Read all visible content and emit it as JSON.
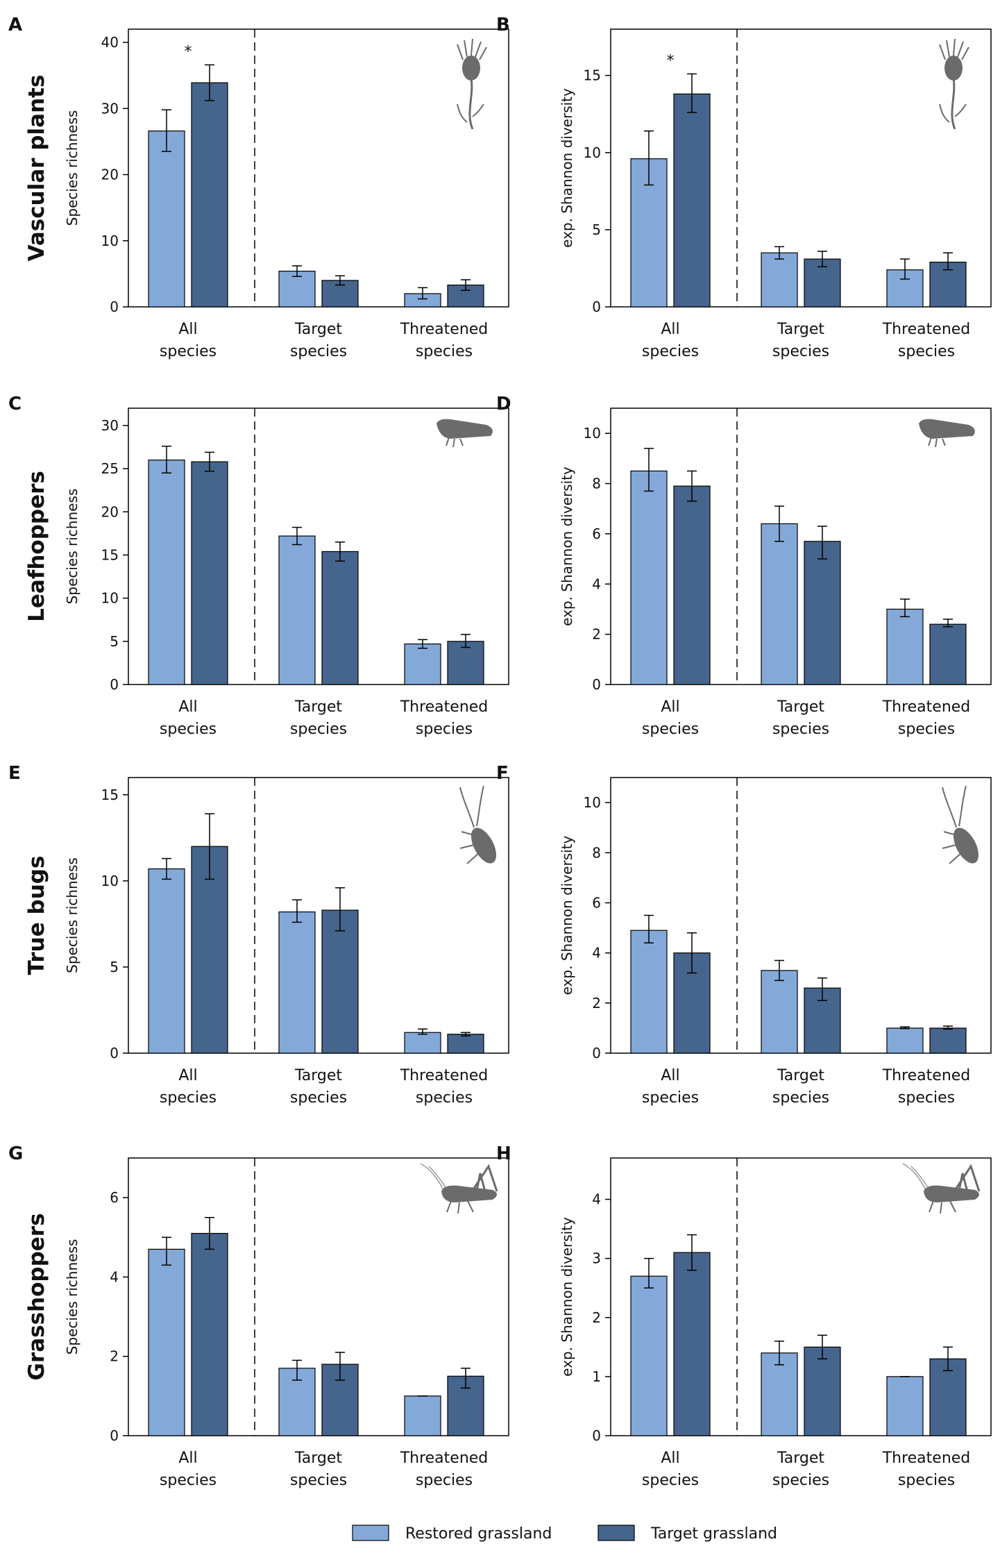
{
  "figure": {
    "legend": [
      {
        "label": "Restored grassland",
        "color": "#84a9d9"
      },
      {
        "label": "Target grassland",
        "color": "#45658c"
      }
    ],
    "colors": {
      "frame": "#000000",
      "divider": "#000000",
      "silhouette": "#6b6b6b"
    }
  },
  "chart_data": [
    {
      "panel": "A",
      "row_title": "Vascular plants",
      "type": "bar",
      "title": "",
      "xlabel": "",
      "ylabel": "Species richness",
      "ylim": [
        0,
        42
      ],
      "yticks": [
        0,
        10,
        20,
        30,
        40
      ],
      "categories": [
        [
          "All",
          "species"
        ],
        [
          "Target",
          "species"
        ],
        [
          "Threatened",
          "species"
        ]
      ],
      "series": [
        {
          "name": "Restored grassland",
          "values": [
            26.6,
            5.4,
            2.0
          ],
          "err_low": [
            23.5,
            4.6,
            1.2
          ],
          "err_high": [
            29.8,
            6.2,
            2.9
          ]
        },
        {
          "name": "Target grassland",
          "values": [
            33.9,
            4.0,
            3.3
          ],
          "err_low": [
            31.2,
            3.3,
            2.5
          ],
          "err_high": [
            36.6,
            4.7,
            4.1
          ]
        }
      ],
      "significance": [
        "*",
        "",
        ""
      ],
      "icon": "thistle-icon"
    },
    {
      "panel": "B",
      "row_title": "",
      "type": "bar",
      "title": "",
      "xlabel": "",
      "ylabel": "exp. Shannon diversity",
      "ylim": [
        0,
        18
      ],
      "yticks": [
        0,
        5,
        10,
        15
      ],
      "categories": [
        [
          "All",
          "species"
        ],
        [
          "Target",
          "species"
        ],
        [
          "Threatened",
          "species"
        ]
      ],
      "series": [
        {
          "name": "Restored grassland",
          "values": [
            9.6,
            3.5,
            2.4
          ],
          "err_low": [
            7.9,
            3.1,
            1.8
          ],
          "err_high": [
            11.4,
            3.9,
            3.1
          ]
        },
        {
          "name": "Target grassland",
          "values": [
            13.8,
            3.1,
            2.9
          ],
          "err_low": [
            12.6,
            2.6,
            2.4
          ],
          "err_high": [
            15.1,
            3.6,
            3.5
          ]
        }
      ],
      "significance": [
        "*",
        "",
        ""
      ],
      "icon": "thistle-icon"
    },
    {
      "panel": "C",
      "row_title": "Leafhoppers",
      "type": "bar",
      "title": "",
      "xlabel": "",
      "ylabel": "Species richness",
      "ylim": [
        0,
        32
      ],
      "yticks": [
        0,
        5,
        10,
        15,
        20,
        25,
        30
      ],
      "categories": [
        [
          "All",
          "species"
        ],
        [
          "Target",
          "species"
        ],
        [
          "Threatened",
          "species"
        ]
      ],
      "series": [
        {
          "name": "Restored grassland",
          "values": [
            26.0,
            17.2,
            4.7
          ],
          "err_low": [
            24.5,
            16.2,
            4.2
          ],
          "err_high": [
            27.6,
            18.2,
            5.2
          ]
        },
        {
          "name": "Target grassland",
          "values": [
            25.8,
            15.4,
            5.0
          ],
          "err_low": [
            24.7,
            14.3,
            4.3
          ],
          "err_high": [
            26.9,
            16.5,
            5.8
          ]
        }
      ],
      "significance": [
        "",
        "",
        ""
      ],
      "icon": "leafhopper-icon"
    },
    {
      "panel": "D",
      "row_title": "",
      "type": "bar",
      "title": "",
      "xlabel": "",
      "ylabel": "exp. Shannon diversity",
      "ylim": [
        0,
        11
      ],
      "yticks": [
        0,
        2,
        4,
        6,
        8,
        10
      ],
      "categories": [
        [
          "All",
          "species"
        ],
        [
          "Target",
          "species"
        ],
        [
          "Threatened",
          "species"
        ]
      ],
      "series": [
        {
          "name": "Restored grassland",
          "values": [
            8.5,
            6.4,
            3.0
          ],
          "err_low": [
            7.7,
            5.7,
            2.7
          ],
          "err_high": [
            9.4,
            7.1,
            3.4
          ]
        },
        {
          "name": "Target grassland",
          "values": [
            7.9,
            5.7,
            2.4
          ],
          "err_low": [
            7.3,
            5.0,
            2.3
          ],
          "err_high": [
            8.5,
            6.3,
            2.6
          ]
        }
      ],
      "significance": [
        "",
        "",
        ""
      ],
      "icon": "leafhopper-icon"
    },
    {
      "panel": "E",
      "row_title": "True bugs",
      "type": "bar",
      "title": "",
      "xlabel": "",
      "ylabel": "Species richness",
      "ylim": [
        0,
        16
      ],
      "yticks": [
        0,
        5,
        10,
        15
      ],
      "categories": [
        [
          "All",
          "species"
        ],
        [
          "Target",
          "species"
        ],
        [
          "Threatened",
          "species"
        ]
      ],
      "series": [
        {
          "name": "Restored grassland",
          "values": [
            10.7,
            8.2,
            1.2
          ],
          "err_low": [
            10.1,
            7.6,
            1.1
          ],
          "err_high": [
            11.3,
            8.9,
            1.4
          ]
        },
        {
          "name": "Target grassland",
          "values": [
            12.0,
            8.3,
            1.1
          ],
          "err_low": [
            10.1,
            7.1,
            1.0
          ],
          "err_high": [
            13.9,
            9.6,
            1.2
          ]
        }
      ],
      "significance": [
        "",
        "",
        ""
      ],
      "icon": "true-bug-icon"
    },
    {
      "panel": "F",
      "row_title": "",
      "type": "bar",
      "title": "",
      "xlabel": "",
      "ylabel": "exp. Shannon diversity",
      "ylim": [
        0,
        11
      ],
      "yticks": [
        0,
        2,
        4,
        6,
        8,
        10
      ],
      "categories": [
        [
          "All",
          "species"
        ],
        [
          "Target",
          "species"
        ],
        [
          "Threatened",
          "species"
        ]
      ],
      "series": [
        {
          "name": "Restored grassland",
          "values": [
            4.9,
            3.3,
            1.0
          ],
          "err_low": [
            4.4,
            2.9,
            0.98
          ],
          "err_high": [
            5.5,
            3.7,
            1.05
          ]
        },
        {
          "name": "Target grassland",
          "values": [
            4.0,
            2.6,
            1.0
          ],
          "err_low": [
            3.2,
            2.1,
            0.96
          ],
          "err_high": [
            4.8,
            3.0,
            1.08
          ]
        }
      ],
      "significance": [
        "",
        "",
        ""
      ],
      "icon": "true-bug-icon"
    },
    {
      "panel": "G",
      "row_title": "Grasshoppers",
      "type": "bar",
      "title": "",
      "xlabel": "",
      "ylabel": "Species richness",
      "ylim": [
        0,
        7
      ],
      "yticks": [
        0,
        2,
        4,
        6
      ],
      "categories": [
        [
          "All",
          "species"
        ],
        [
          "Target",
          "species"
        ],
        [
          "Threatened",
          "species"
        ]
      ],
      "series": [
        {
          "name": "Restored grassland",
          "values": [
            4.7,
            1.7,
            1.0
          ],
          "err_low": [
            4.3,
            1.4,
            1.0
          ],
          "err_high": [
            5.0,
            1.9,
            1.0
          ]
        },
        {
          "name": "Target grassland",
          "values": [
            5.1,
            1.8,
            1.5
          ],
          "err_low": [
            4.7,
            1.4,
            1.2
          ],
          "err_high": [
            5.5,
            2.1,
            1.7
          ]
        }
      ],
      "significance": [
        "",
        "",
        ""
      ],
      "icon": "grasshopper-icon"
    },
    {
      "panel": "H",
      "row_title": "",
      "type": "bar",
      "title": "",
      "xlabel": "",
      "ylabel": "exp. Shannon diversity",
      "ylim": [
        0,
        4.7
      ],
      "yticks": [
        0,
        1,
        2,
        3,
        4
      ],
      "categories": [
        [
          "All",
          "species"
        ],
        [
          "Target",
          "species"
        ],
        [
          "Threatened",
          "species"
        ]
      ],
      "series": [
        {
          "name": "Restored grassland",
          "values": [
            2.7,
            1.4,
            1.0
          ],
          "err_low": [
            2.5,
            1.2,
            1.0
          ],
          "err_high": [
            3.0,
            1.6,
            1.0
          ]
        },
        {
          "name": "Target grassland",
          "values": [
            3.1,
            1.5,
            1.3
          ],
          "err_low": [
            2.8,
            1.3,
            1.1
          ],
          "err_high": [
            3.4,
            1.7,
            1.5
          ]
        }
      ],
      "significance": [
        "",
        "",
        ""
      ],
      "icon": "grasshopper-icon"
    }
  ]
}
